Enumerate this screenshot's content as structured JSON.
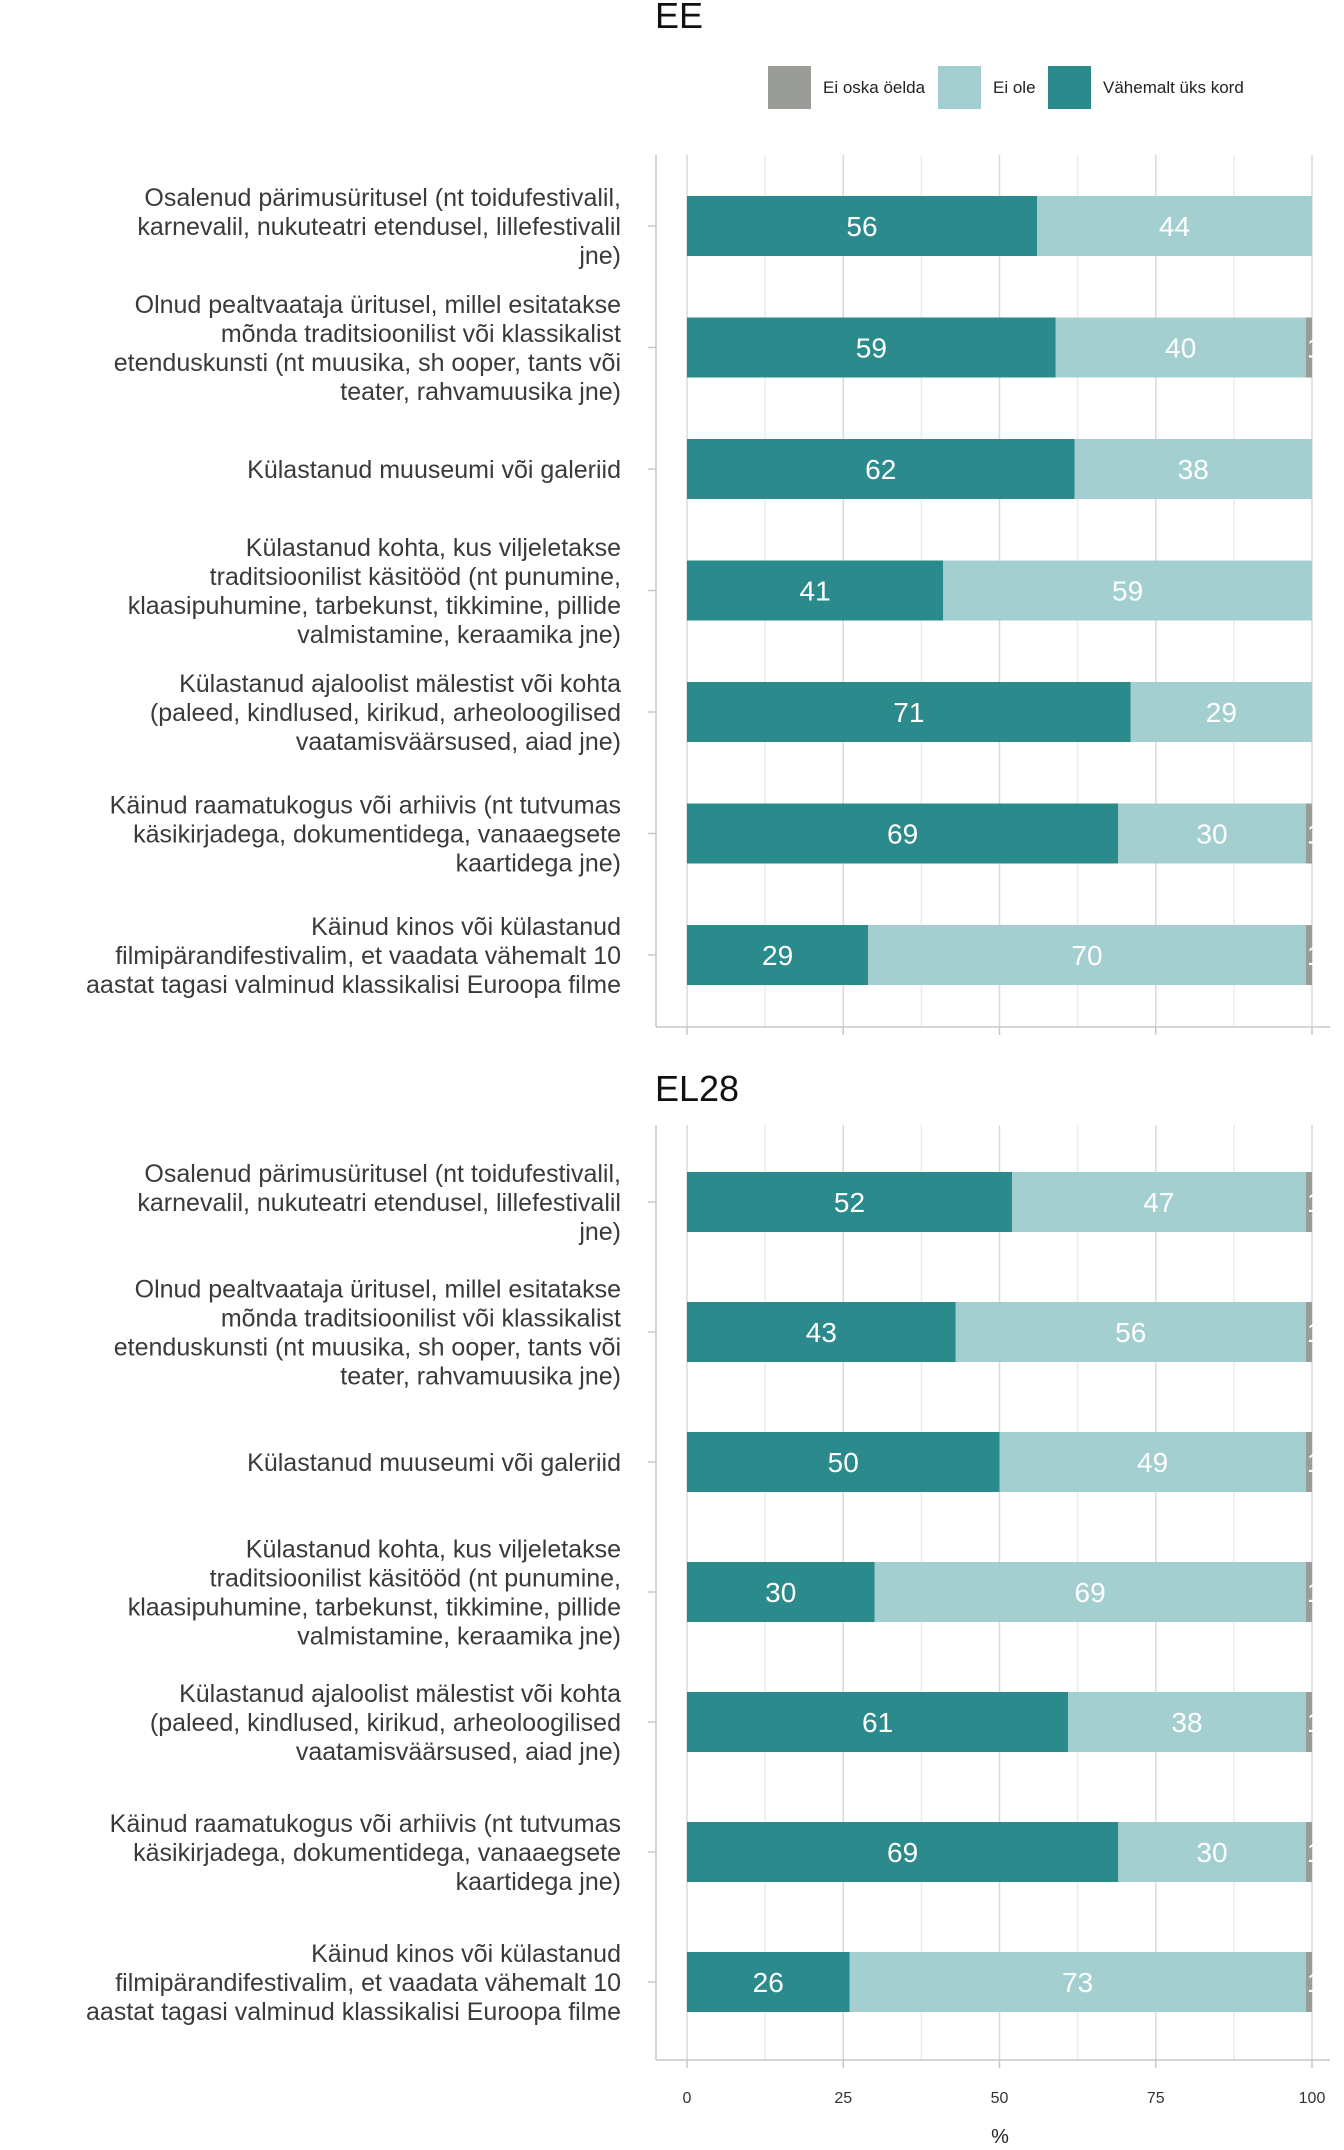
{
  "chart_data": {
    "type": "bar",
    "orientation": "horizontal",
    "stacked": true,
    "xlabel": "%",
    "xlim": [
      0,
      100
    ],
    "x_ticks": [
      "0",
      "25",
      "50",
      "75",
      "100"
    ],
    "grid": true,
    "legend_placement": "top-right",
    "legend": [
      {
        "name": "Ei oska öelda",
        "color": "#9a9c97"
      },
      {
        "name": "Ei ole",
        "color": "#a3cfd0"
      },
      {
        "name": "Vähemalt üks kord",
        "color": "#2b8a8b"
      }
    ],
    "categories": [
      [
        "Osalenud pärimusüritusel (nt toidufestivalil,",
        "karnevalil, nukuteatri etendusel, lillefestivalil",
        "jne)"
      ],
      [
        "Olnud pealtvaataja üritusel, millel esitatakse",
        "mõnda traditsioonilist või klassikalist",
        "etenduskunsti (nt muusika, sh ooper, tants või",
        "teater, rahvamuusika jne)"
      ],
      [
        "Külastanud muuseumi või galeriid"
      ],
      [
        "Külastanud kohta, kus viljeletakse",
        "traditsioonilist käsitööd (nt punumine,",
        "klaasipuhumine, tarbekunst, tikkimine, pillide",
        "valmistamine, keraamika jne)"
      ],
      [
        "Külastanud ajaloolist mälestist või kohta",
        "(paleed, kindlused, kirikud, arheoloogilised",
        "vaatamisväärsused, aiad jne)"
      ],
      [
        "Käinud raamatukogus või arhiivis (nt tutvumas",
        "käsikirjadega, dokumentidega, vanaaegsete",
        "kaartidega jne)"
      ],
      [
        "Käinud kinos või külastanud",
        "filmipärandifestivalim, et vaadata vähemalt 10",
        "aastat tagasi valminud klassikalisi Euroopa filme"
      ]
    ],
    "panels": [
      {
        "title": "EE",
        "series": [
          {
            "name": "Vähemalt üks kord",
            "values": [
              56,
              59,
              62,
              41,
              71,
              69,
              29
            ]
          },
          {
            "name": "Ei ole",
            "values": [
              44,
              40,
              38,
              59,
              29,
              30,
              70
            ]
          },
          {
            "name": "Ei oska öelda",
            "values": [
              0,
              1,
              0,
              0,
              0,
              1,
              1
            ]
          }
        ]
      },
      {
        "title": "EL28",
        "series": [
          {
            "name": "Vähemalt üks kord",
            "values": [
              52,
              43,
              50,
              30,
              61,
              69,
              26
            ]
          },
          {
            "name": "Ei ole",
            "values": [
              47,
              56,
              49,
              69,
              38,
              30,
              73
            ]
          },
          {
            "name": "Ei oska öelda",
            "values": [
              1,
              1,
              1,
              1,
              1,
              1,
              1
            ]
          }
        ]
      }
    ]
  }
}
